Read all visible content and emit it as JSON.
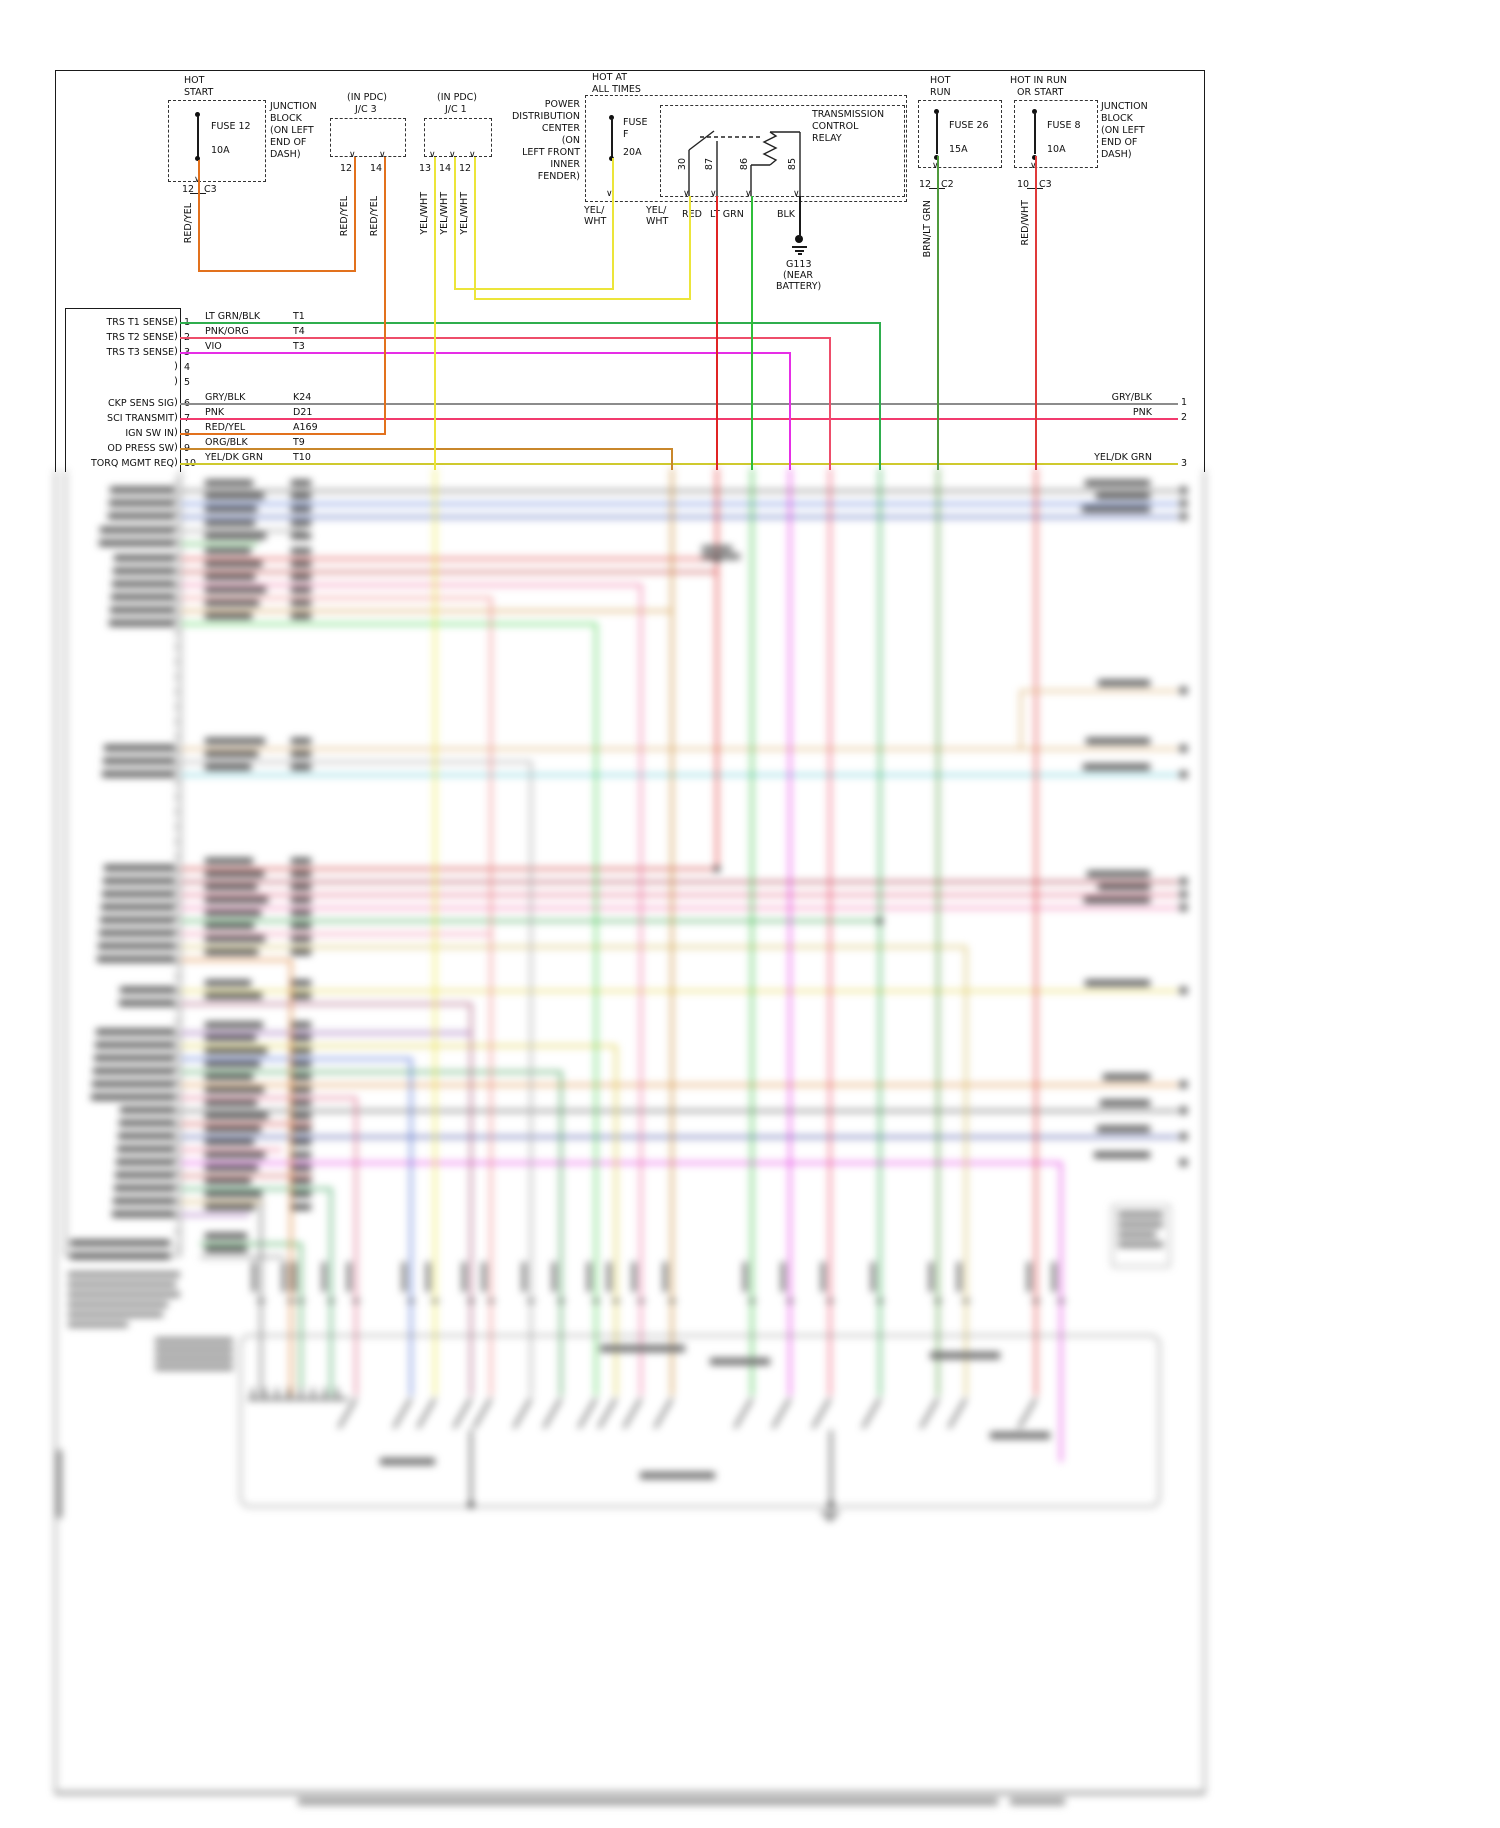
{
  "colors": {
    "red_yel": "#e2711d",
    "yel_wht": "#ece53a",
    "red": "#e02424",
    "lt_grn": "#2fbf3a",
    "blk": "#1a1a1a",
    "brn_lt_grn": "#4f9a3c",
    "red_wht": "#e03a3a",
    "lt_grn_blk": "#2fae4e",
    "pnk_org": "#ee4d6a",
    "vio": "#e62ee6",
    "gry_blk": "#8c8c8c",
    "pnk": "#f23a6e",
    "org_blk": "#c9872b",
    "yel_dk_grn": "#cfca2e",
    "line": "#1a1a1a"
  },
  "sources": {
    "hot_start": {
      "title": [
        "HOT",
        "START"
      ],
      "fuse_name": "FUSE 12",
      "fuse_rating": "10A",
      "note": [
        "JUNCTION",
        "BLOCK",
        "(ON LEFT",
        "END OF",
        "DASH)"
      ],
      "pin": "12",
      "conn": "C3",
      "wire": "RED/YEL"
    },
    "jc3": {
      "title": [
        "(IN PDC)",
        "J/C 3"
      ],
      "pins": [
        "12",
        "14"
      ],
      "wires": [
        "RED/YEL",
        "RED/YEL"
      ]
    },
    "jc1": {
      "title": [
        "(IN PDC)",
        "J/C 1"
      ],
      "pins": [
        "13",
        "14",
        "12"
      ],
      "wires": [
        "YEL/WHT",
        "YEL/WHT",
        "YEL/WHT"
      ]
    },
    "pdc": {
      "note": [
        "POWER",
        "DISTRIBUTION",
        "CENTER",
        "(ON",
        "LEFT FRONT",
        "INNER",
        "FENDER)"
      ],
      "hot": [
        "HOT AT",
        "ALL TIMES"
      ],
      "fuse_name": [
        "FUSE",
        "F"
      ],
      "fuse_rating": "20A",
      "wire": [
        "YEL/",
        "WHT"
      ]
    },
    "relay": {
      "label": [
        "TRANSMISSION",
        "CONTROL",
        "RELAY"
      ],
      "pins": [
        "30",
        "87",
        "86",
        "85"
      ],
      "wire30": [
        "YEL/",
        "WHT"
      ],
      "wire87": "RED",
      "wire86": "LT GRN",
      "wire85": "BLK"
    },
    "ground": {
      "name": "G113",
      "note": [
        "(NEAR",
        "BATTERY)"
      ]
    },
    "hot_run": {
      "title": [
        "HOT",
        "RUN"
      ],
      "fuse_name": "FUSE 26",
      "fuse_rating": "15A",
      "pin": "12",
      "conn": "C2",
      "wire": "BRN/LT GRN"
    },
    "hot_run_start": {
      "title": [
        "HOT IN RUN",
        "OR START"
      ],
      "fuse_name": "FUSE 8",
      "fuse_rating": "10A",
      "note": [
        "JUNCTION",
        "BLOCK",
        "(ON LEFT",
        "END OF",
        "DASH)"
      ],
      "pin": "10",
      "conn": "C3",
      "wire": "RED/WHT"
    }
  },
  "pcm": {
    "rows": [
      {
        "signal": "TRS T1 SENSE",
        "pin": "1",
        "wire": "LT GRN/BLK",
        "code": "T1"
      },
      {
        "signal": "TRS T2 SENSE",
        "pin": "2",
        "wire": "PNK/ORG",
        "code": "T4"
      },
      {
        "signal": "TRS T3 SENSE",
        "pin": "3",
        "wire": "VIO",
        "code": "T3"
      },
      {
        "signal": "",
        "pin": "4",
        "wire": "",
        "code": ""
      },
      {
        "signal": "",
        "pin": "5",
        "wire": "",
        "code": ""
      },
      {
        "signal": "CKP SENS SIG",
        "pin": "6",
        "wire": "GRY/BLK",
        "code": "K24"
      },
      {
        "signal": "SCI TRANSMIT",
        "pin": "7",
        "wire": "PNK",
        "code": "D21"
      },
      {
        "signal": "IGN SW IN",
        "pin": "8",
        "wire": "RED/YEL",
        "code": "A169"
      },
      {
        "signal": "OD PRESS SW",
        "pin": "9",
        "wire": "ORG/BLK",
        "code": "T9"
      },
      {
        "signal": "TORQ MGMT REQ",
        "pin": "10",
        "wire": "YEL/DK GRN",
        "code": "T10"
      }
    ]
  },
  "exits": [
    {
      "label": "GRY/BLK",
      "num": "1"
    },
    {
      "label": "PNK",
      "num": "2"
    },
    {
      "label": "YEL/DK GRN",
      "num": "3"
    }
  ]
}
